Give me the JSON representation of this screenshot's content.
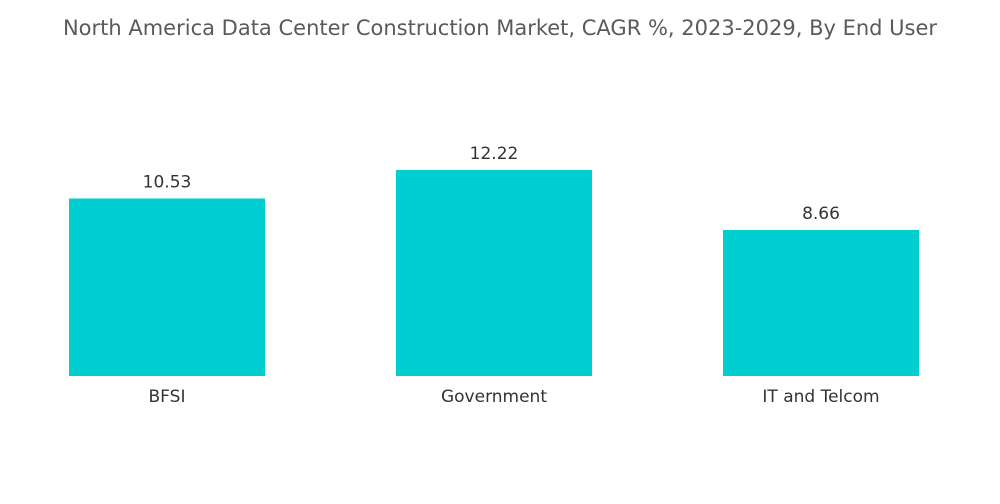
{
  "colors": {
    "bar": "#00CED1",
    "text": "#333333",
    "title": "#5a5a5a"
  },
  "chart_data": {
    "type": "bar",
    "title": "North America Data Center Construction Market, CAGR %, 2023-2029, By End User",
    "categories": [
      "BFSI",
      "Government",
      "IT and Telcom"
    ],
    "values": [
      10.53,
      12.22,
      8.66
    ],
    "value_labels": [
      "10.53",
      "12.22",
      "8.66"
    ],
    "xlabel": "",
    "ylabel": "",
    "ylim": [
      0,
      12.22
    ],
    "grid": false,
    "legend": "none"
  }
}
